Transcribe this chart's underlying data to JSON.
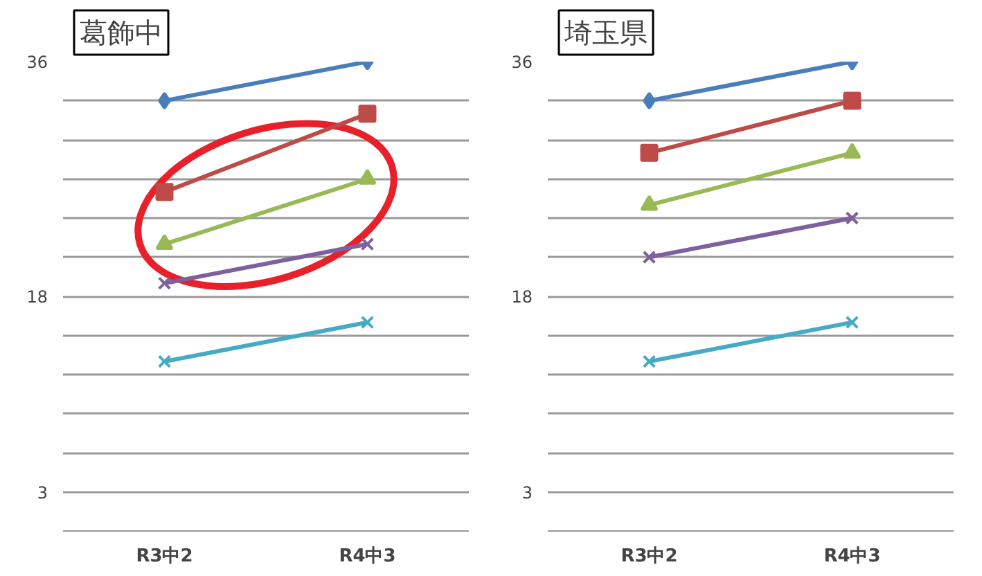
{
  "chart_data": [
    {
      "type": "line",
      "title": "葛飾中",
      "categories": [
        "R3中2",
        "R4中3"
      ],
      "ylim": [
        0,
        36
      ],
      "yticks": [
        {
          "value": 3,
          "label": "3"
        },
        {
          "value": 6,
          "label": null
        },
        {
          "value": 9,
          "label": null
        },
        {
          "value": 12,
          "label": null
        },
        {
          "value": 15,
          "label": null
        },
        18,
        {
          "value": 21,
          "label": null
        },
        {
          "value": 24,
          "label": null
        },
        {
          "value": 27,
          "label": null
        },
        {
          "value": 30,
          "label": null
        },
        {
          "value": 33,
          "label": null
        },
        36
      ],
      "grid": "y",
      "line_style": "solid",
      "series": [
        {
          "color": "#4a7ebb",
          "marker": "diamond",
          "values": [
            33,
            36
          ]
        },
        {
          "color": "#be4b48",
          "marker": "square",
          "values": [
            26,
            32
          ]
        },
        {
          "color": "#98b954",
          "marker": "triangle",
          "values": [
            22,
            27
          ]
        },
        {
          "color": "#7d60a0",
          "marker": "cross",
          "values": [
            19,
            22
          ]
        },
        {
          "color": "#46aac5",
          "marker": "cross",
          "values": [
            13,
            16
          ]
        }
      ]
    },
    {
      "type": "line",
      "title": "埼玉県",
      "categories": [
        "R3中2",
        "R4中3"
      ],
      "ylim": [
        0,
        36
      ],
      "yticks": [
        {
          "value": 3,
          "label": "3"
        },
        {
          "value": 6,
          "label": null
        },
        {
          "value": 9,
          "label": null
        },
        {
          "value": 12,
          "label": null
        },
        {
          "value": 15,
          "label": null
        },
        18,
        {
          "value": 21,
          "label": null
        },
        {
          "value": 24,
          "label": null
        },
        {
          "value": 27,
          "label": null
        },
        {
          "value": 30,
          "label": null
        },
        {
          "value": 33,
          "label": null
        },
        36
      ],
      "grid": "y",
      "line_style": "solid",
      "series": [
        {
          "color": "#4a7ebb",
          "marker": "diamond",
          "values": [
            33,
            36
          ]
        },
        {
          "color": "#be4b48",
          "marker": "square",
          "values": [
            29,
            33
          ]
        },
        {
          "color": "#98b954",
          "marker": "triangle",
          "values": [
            25,
            29
          ]
        },
        {
          "color": "#7d60a0",
          "marker": "cross",
          "values": [
            21,
            24
          ]
        },
        {
          "color": "#46aac5",
          "marker": "cross",
          "values": [
            13,
            16
          ]
        }
      ]
    }
  ]
}
